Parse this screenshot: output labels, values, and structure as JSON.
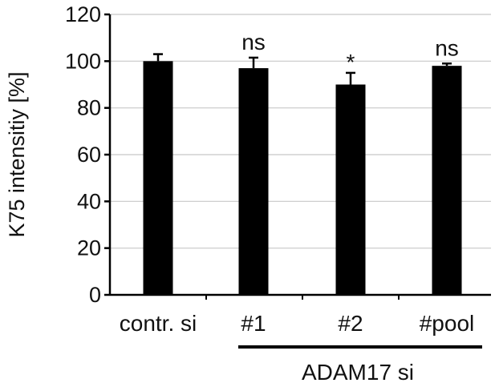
{
  "chart_data": {
    "type": "bar",
    "categories": [
      "contr. si",
      "#1",
      "#2",
      "#pool"
    ],
    "values": [
      100,
      97,
      90,
      98
    ],
    "errors": [
      3,
      4.5,
      5,
      1
    ],
    "annotations": [
      "",
      "ns",
      "*",
      "ns"
    ],
    "ylabel": "K75 intensitiy [%]",
    "ylim": [
      0,
      120
    ],
    "yticks": [
      0,
      20,
      40,
      60,
      80,
      100,
      120
    ],
    "grid": true,
    "bar_color": "#000000",
    "grid_color": "#c8c8c8",
    "group": {
      "label": "ADAM17 si",
      "categories": [
        "#1",
        "#2",
        "#pool"
      ]
    }
  }
}
